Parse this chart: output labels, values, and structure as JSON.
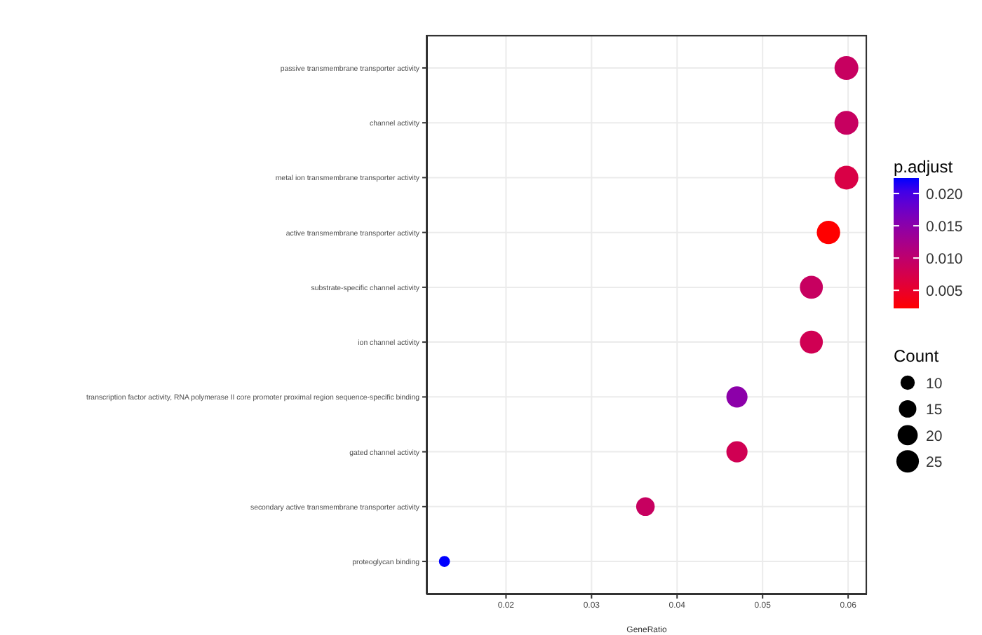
{
  "chart_data": {
    "type": "bubble",
    "xlabel": "GeneRatio",
    "clabel": "p.adjust",
    "legend_title": "Count",
    "categories": [
      "passive transmembrane transporter activity",
      "channel activity",
      "metal ion transmembrane transporter activity",
      "active transmembrane transporter activity",
      "substrate-specific channel activity",
      "ion channel activity",
      "transcription factor activity, RNA polymerase II core promoter proximal region sequence-specific binding",
      "gated channel activity",
      "secondary active transmembrane transporter activity",
      "proteoglycan binding"
    ],
    "values": [
      0.0598,
      0.0598,
      0.0598,
      0.0577,
      0.0557,
      0.0557,
      0.047,
      0.047,
      0.0363,
      0.0128
    ],
    "sizes": [
      28,
      28,
      28,
      27,
      26,
      26,
      22,
      22,
      17,
      6
    ],
    "cvalues": [
      0.009,
      0.009,
      0.007,
      0.0022,
      0.009,
      0.008,
      0.015,
      0.008,
      0.009,
      0.0224
    ],
    "size_legend": [
      10,
      15,
      20,
      25
    ],
    "clim": [
      0.0022,
      0.0224
    ],
    "cticks": [
      {
        "value": 0.005,
        "label": "0.005"
      },
      {
        "value": 0.01,
        "label": "0.010"
      },
      {
        "value": 0.015,
        "label": "0.015"
      },
      {
        "value": 0.02,
        "label": "0.020"
      }
    ],
    "orientation": "horizontal",
    "xlim": [
      0.0107,
      0.0622
    ],
    "xticks": [
      0.02,
      0.03,
      0.04,
      0.05,
      0.06
    ],
    "grid": true
  }
}
